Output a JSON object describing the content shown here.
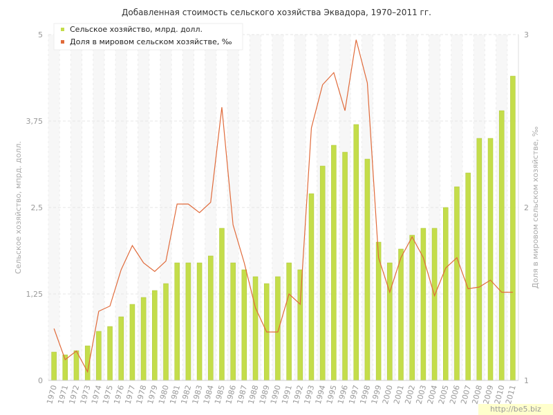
{
  "watermark": "http://be5.biz",
  "chart_data": {
    "type": "bar",
    "title": "Добавленная стоимость сельского хозяйства Эквадора, 1970–2011 гг.",
    "ylabel": "Сельское хозяйство, мпрд. долл.",
    "y2label": "Доля в мировом сельском хозяйстве, ‰",
    "ylim": [
      0,
      5
    ],
    "y2lim": [
      1,
      3
    ],
    "yticks": [
      "0",
      "1,25",
      "2,5",
      "3,75",
      "5"
    ],
    "y2ticks": [
      "1",
      "2",
      "3"
    ],
    "grid": true,
    "legend_position": "top-left",
    "colors": {
      "bars": "#c4dd4a",
      "bars_stroke": "#a9c634",
      "line": "#e06a3a"
    },
    "categories": [
      "1970",
      "1971",
      "1972",
      "1973",
      "1974",
      "1975",
      "1976",
      "1977",
      "1978",
      "1979",
      "1980",
      "1981",
      "1982",
      "1983",
      "1984",
      "1985",
      "1986",
      "1987",
      "1988",
      "1989",
      "1990",
      "1991",
      "1992",
      "1993",
      "1994",
      "1995",
      "1996",
      "1997",
      "1998",
      "1999",
      "2000",
      "2001",
      "2002",
      "2003",
      "2004",
      "2005",
      "2006",
      "2007",
      "2008",
      "2009",
      "2010",
      "2011"
    ],
    "series": [
      {
        "name": "Сельское хозяйство, млрд. долл.",
        "type": "bar",
        "axis": "left",
        "values": [
          0.41,
          0.37,
          0.43,
          0.5,
          0.71,
          0.78,
          0.92,
          1.1,
          1.2,
          1.3,
          1.4,
          1.7,
          1.7,
          1.7,
          1.8,
          2.2,
          1.7,
          1.6,
          1.5,
          1.4,
          1.5,
          1.7,
          1.6,
          2.7,
          3.1,
          3.4,
          3.3,
          3.7,
          3.2,
          2.0,
          1.7,
          1.9,
          2.1,
          2.2,
          2.2,
          2.5,
          2.8,
          3.0,
          3.5,
          3.5,
          3.9,
          4.4
        ]
      },
      {
        "name": "Доля в мировом сельском хозяйстве, ‰",
        "type": "line",
        "axis": "right",
        "values": [
          1.3,
          1.12,
          1.17,
          1.05,
          1.4,
          1.43,
          1.64,
          1.78,
          1.68,
          1.63,
          1.69,
          2.02,
          2.02,
          1.97,
          2.03,
          2.58,
          1.9,
          1.68,
          1.42,
          1.28,
          1.28,
          1.5,
          1.44,
          2.46,
          2.71,
          2.78,
          2.56,
          2.97,
          2.72,
          1.71,
          1.51,
          1.71,
          1.83,
          1.71,
          1.49,
          1.65,
          1.71,
          1.53,
          1.54,
          1.58,
          1.51,
          1.51
        ]
      }
    ]
  }
}
